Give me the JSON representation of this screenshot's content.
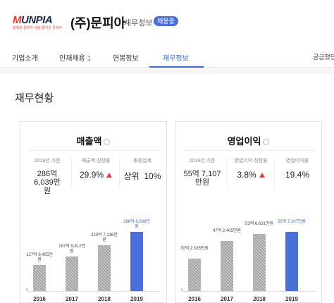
{
  "header": {
    "logo_text": "MUNPIA",
    "logo_tagline": "행복한 문피아 세상 즐거운 문피아",
    "company_name": "(주)문피아",
    "link": "재무정보",
    "badge": "채용중"
  },
  "tabs": [
    {
      "label": "기업소개",
      "count": ""
    },
    {
      "label": "인재채용",
      "count": "1"
    },
    {
      "label": "연봉정보",
      "count": ""
    },
    {
      "label": "재무정보",
      "count": ""
    }
  ],
  "tab_right": "궁금했던",
  "section_title": "재무현황",
  "revenue": {
    "title": "매출액",
    "stats": [
      {
        "label": "2019년 기준",
        "value": "286억 6,039만원"
      },
      {
        "label": "매출액 성장률",
        "value": "29.9%"
      },
      {
        "label": "동종업계",
        "value": "상위  10%"
      }
    ],
    "axis_zero": "0",
    "chart_data": {
      "type": "bar",
      "categories": [
        "2016",
        "2017",
        "2018",
        "2019"
      ],
      "values": [
        127.65,
        167.98,
        220.71,
        286.6
      ],
      "value_labels": [
        "127억 6,455만원",
        "167억 9,812만원",
        "220억 7,136만원",
        "286억 6,039만원"
      ],
      "highlight_index": 3
    }
  },
  "operating_profit": {
    "title": "영업이익",
    "stats": [
      {
        "label": "2019년 기준",
        "value": "55억 7,107만원"
      },
      {
        "label": "영업이익 성장률",
        "value": "3.8%"
      },
      {
        "label": "영업이익률",
        "value": "19.4%"
      }
    ],
    "axis_zero": "0",
    "chart_data": {
      "type": "bar",
      "categories": [
        "2016",
        "2017",
        "2018",
        "2019"
      ],
      "values": [
        30.23,
        47.24,
        53.66,
        55.71
      ],
      "value_labels": [
        "30억 2,335만원",
        "47억 2,405만원",
        "53억 6,631만원",
        "55억 7,107만원"
      ],
      "highlight_index": 3
    }
  }
}
